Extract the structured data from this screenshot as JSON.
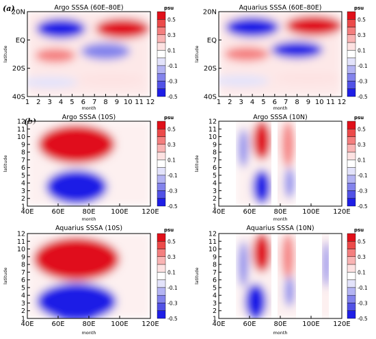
{
  "figure": {
    "panel_a_tag": "(a)",
    "panel_b_tag": "(b)"
  },
  "colorbar": {
    "unit": "psu",
    "labels": [
      "0.5",
      "0.3",
      "0.1",
      "-0.1",
      "-0.3",
      "-0.5"
    ],
    "colors": [
      "#e0101a",
      "#ec4a4a",
      "#f47f7f",
      "#f9b4b4",
      "#fde2e2",
      "#ffffff",
      "#e3e3fb",
      "#b4b4f3",
      "#8383ec",
      "#5252e6",
      "#1e1ee6"
    ]
  },
  "chart_data": [
    {
      "type": "heatmap",
      "title": "Argo SSSA (60E–80E)",
      "xlabel": "month",
      "ylabel": "latitude",
      "x_ticks": [
        "1",
        "2",
        "3",
        "4",
        "5",
        "6",
        "7",
        "8",
        "9",
        "10",
        "11",
        "12"
      ],
      "y_ticks": [
        "20N",
        "EQ",
        "20S",
        "40S"
      ],
      "cells": [
        {
          "x": 4,
          "y": 8,
          "rx": 2.2,
          "ry": 7,
          "v": -0.5
        },
        {
          "x": 9.5,
          "y": 8,
          "rx": 2.4,
          "ry": 7,
          "v": 0.5
        },
        {
          "x": 3.5,
          "y": -11,
          "rx": 1.8,
          "ry": 5,
          "v": 0.3
        },
        {
          "x": 8,
          "y": -8,
          "rx": 2.2,
          "ry": 6,
          "v": -0.3
        },
        {
          "x": 8.5,
          "y": -28,
          "rx": 3,
          "ry": 4,
          "v": 0.1
        },
        {
          "x": 3,
          "y": -30,
          "rx": 2.5,
          "ry": 4,
          "v": -0.1
        }
      ]
    },
    {
      "type": "heatmap",
      "title": "Aquarius SSSA (60E–80E)",
      "xlabel": "month",
      "ylabel": "latitude",
      "x_ticks": [
        "1",
        "2",
        "3",
        "4",
        "5",
        "6",
        "7",
        "8",
        "9",
        "10",
        "11",
        "12"
      ],
      "y_ticks": [
        "20N",
        "EQ",
        "20S",
        "40S"
      ],
      "cells": [
        {
          "x": 4,
          "y": 9,
          "rx": 2.4,
          "ry": 7,
          "v": -0.5
        },
        {
          "x": 9.5,
          "y": 10,
          "rx": 2.5,
          "ry": 7,
          "v": 0.5
        },
        {
          "x": 3.5,
          "y": -10,
          "rx": 2,
          "ry": 5,
          "v": 0.3
        },
        {
          "x": 8,
          "y": -7,
          "rx": 2.3,
          "ry": 6,
          "v": -0.5
        },
        {
          "x": 9,
          "y": -27,
          "rx": 3,
          "ry": 4,
          "v": 0.1
        },
        {
          "x": 3,
          "y": -29,
          "rx": 2.5,
          "ry": 4,
          "v": -0.1
        }
      ]
    },
    {
      "type": "heatmap",
      "title": "Argo SSSA (10S)",
      "xlabel": "month",
      "ylabel": "latitude",
      "x_ticks": [
        "40E",
        "60E",
        "80E",
        "100E",
        "120E"
      ],
      "y_ticks": [
        "1",
        "2",
        "3",
        "4",
        "5",
        "6",
        "7",
        "8",
        "9",
        "10",
        "11",
        "12"
      ],
      "cells": [
        {
          "x": 72,
          "y": 9,
          "rx": 25,
          "ry": 2.5,
          "v": 0.5
        },
        {
          "x": 72,
          "y": 3.5,
          "rx": 20,
          "ry": 2.2,
          "v": -0.5
        }
      ]
    },
    {
      "type": "heatmap",
      "title": "Argo SSSA (10N)",
      "xlabel": "month",
      "ylabel": "latitude",
      "x_ticks": [
        "40E",
        "60E",
        "80E",
        "100E",
        "120E"
      ],
      "y_ticks": [
        "1",
        "2",
        "3",
        "4",
        "5",
        "6",
        "7",
        "8",
        "9",
        "10",
        "11",
        "12"
      ],
      "cells": [
        {
          "x": 68,
          "y": 9.5,
          "rx": 6,
          "ry": 2.5,
          "v": 0.5
        },
        {
          "x": 68,
          "y": 3.5,
          "rx": 6,
          "ry": 2.2,
          "v": -0.5
        },
        {
          "x": 56,
          "y": 8.5,
          "rx": 3,
          "ry": 2.5,
          "v": -0.3
        },
        {
          "x": 85,
          "y": 9,
          "rx": 4,
          "ry": 3,
          "v": 0.3
        },
        {
          "x": 86,
          "y": 4,
          "rx": 3,
          "ry": 2,
          "v": -0.3
        }
      ]
    },
    {
      "type": "heatmap",
      "title": "Aquarius SSSA (10S)",
      "xlabel": "month",
      "ylabel": "latitude",
      "x_ticks": [
        "40E",
        "60E",
        "80E",
        "100E",
        "120E"
      ],
      "y_ticks": [
        "1",
        "2",
        "3",
        "4",
        "5",
        "6",
        "7",
        "8",
        "9",
        "10",
        "11",
        "12"
      ],
      "cells": [
        {
          "x": 72,
          "y": 8.7,
          "rx": 28,
          "ry": 2.8,
          "v": 0.5
        },
        {
          "x": 72,
          "y": 3.2,
          "rx": 26,
          "ry": 2.4,
          "v": -0.5
        }
      ]
    },
    {
      "type": "heatmap",
      "title": "Aquarius SSSA (10N)",
      "xlabel": "month",
      "ylabel": "latitude",
      "x_ticks": [
        "40E",
        "60E",
        "80E",
        "100E",
        "120E"
      ],
      "y_ticks": [
        "1",
        "2",
        "3",
        "4",
        "5",
        "6",
        "7",
        "8",
        "9",
        "10",
        "11",
        "12"
      ],
      "cells": [
        {
          "x": 68,
          "y": 9.5,
          "rx": 6,
          "ry": 2.5,
          "v": 0.5
        },
        {
          "x": 64,
          "y": 3.2,
          "rx": 7,
          "ry": 2.3,
          "v": -0.5
        },
        {
          "x": 56,
          "y": 8,
          "rx": 3,
          "ry": 3,
          "v": -0.3
        },
        {
          "x": 85,
          "y": 9,
          "rx": 4,
          "ry": 3,
          "v": 0.3
        },
        {
          "x": 86,
          "y": 4.5,
          "rx": 3,
          "ry": 2,
          "v": -0.3
        },
        {
          "x": 110,
          "y": 8,
          "rx": 2.5,
          "ry": 3,
          "v": -0.3
        }
      ]
    }
  ]
}
